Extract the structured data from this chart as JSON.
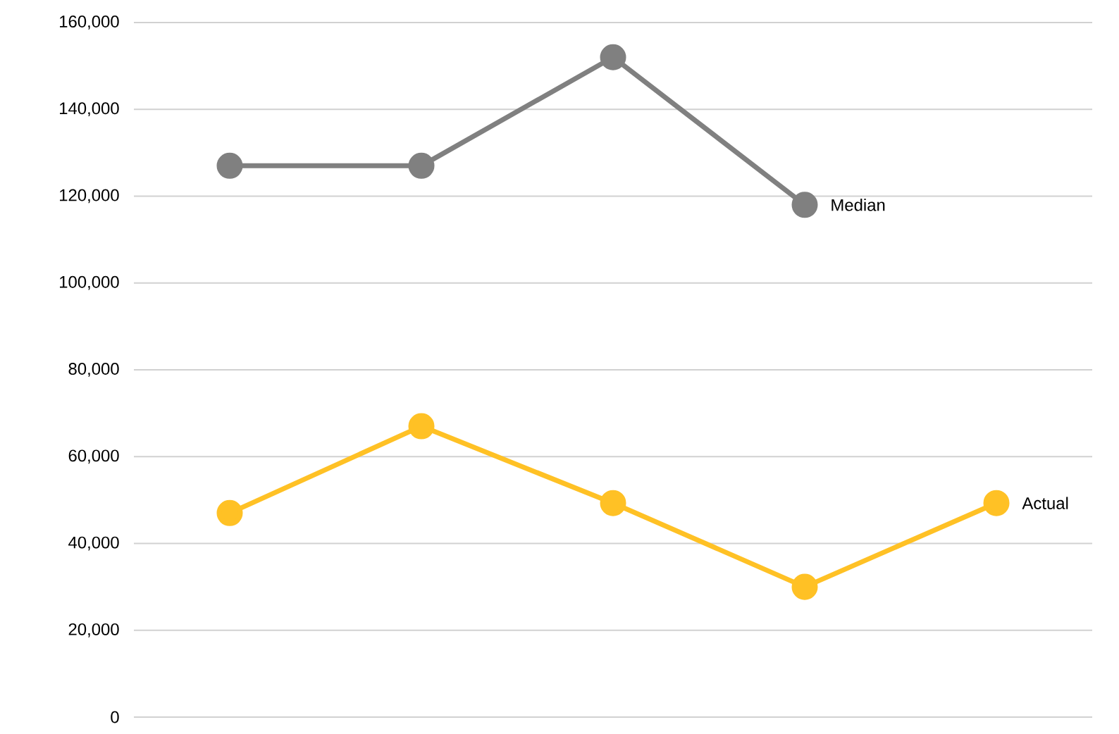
{
  "chart_data": {
    "type": "line",
    "categories": [
      null,
      null,
      null,
      null,
      null
    ],
    "series": [
      {
        "name": "Median",
        "color": "#808080",
        "values": [
          127000,
          127000,
          152000,
          118000,
          null
        ]
      },
      {
        "name": "Actual",
        "color": "#ffc125",
        "values": [
          47000,
          67000,
          49300,
          30000,
          49300
        ]
      }
    ],
    "ylim": [
      0,
      160000
    ],
    "yticks": [
      {
        "value": 0,
        "label": "0"
      },
      {
        "value": 20000,
        "label": "20,000"
      },
      {
        "value": 40000,
        "label": "40,000"
      },
      {
        "value": 60000,
        "label": "60,000"
      },
      {
        "value": 80000,
        "label": "80,000"
      },
      {
        "value": 100000,
        "label": "100,000"
      },
      {
        "value": 120000,
        "label": "120,000"
      },
      {
        "value": 140000,
        "label": "140,000"
      },
      {
        "value": 160000,
        "label": "160,000"
      }
    ],
    "grid": "y",
    "legend": false,
    "marker": "circle",
    "line_style": "solid"
  }
}
